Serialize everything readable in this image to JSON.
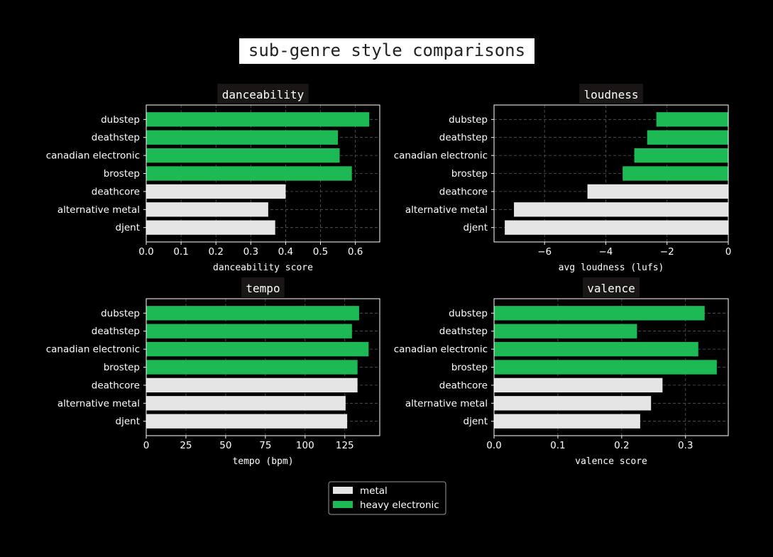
{
  "figure_title": "sub-genre style comparisons",
  "colors": {
    "background": "#000000",
    "metal": "#e5e5e5",
    "heavy_electronic": "#1db954",
    "axes_edge": "#ffffff",
    "grid": "#5a5a5a",
    "panel_title_bg": "#1a1616",
    "figure_title_bg": "#ffffff",
    "figure_title_text": "#222222"
  },
  "legend": {
    "position": "bottom-center",
    "items": [
      {
        "label": "metal",
        "color_key": "metal"
      },
      {
        "label": "heavy electronic",
        "color_key": "heavy_electronic"
      }
    ]
  },
  "chart_data": [
    {
      "type": "bar",
      "orientation": "horizontal",
      "title": "danceability",
      "xlabel": "danceability score",
      "categories": [
        "djent",
        "alternative metal",
        "deathcore",
        "brostep",
        "canadian electronic",
        "deathstep",
        "dubstep"
      ],
      "groups": [
        "metal",
        "metal",
        "metal",
        "heavy electronic",
        "heavy electronic",
        "heavy electronic",
        "heavy electronic"
      ],
      "values": [
        0.37,
        0.35,
        0.4,
        0.59,
        0.555,
        0.55,
        0.64
      ],
      "xlim": [
        0,
        0.67
      ],
      "xticks": [
        0.0,
        0.1,
        0.2,
        0.3,
        0.4,
        0.5,
        0.6
      ],
      "xtick_labels": [
        "0.0",
        "0.1",
        "0.2",
        "0.3",
        "0.4",
        "0.5",
        "0.6"
      ],
      "grid": true
    },
    {
      "type": "bar",
      "orientation": "horizontal",
      "title": "loudness",
      "xlabel": "avg loudness (lufs)",
      "categories": [
        "djent",
        "alternative metal",
        "deathcore",
        "brostep",
        "canadian electronic",
        "deathstep",
        "dubstep"
      ],
      "groups": [
        "metal",
        "metal",
        "metal",
        "heavy electronic",
        "heavy electronic",
        "heavy electronic",
        "heavy electronic"
      ],
      "values": [
        -7.3,
        -7.0,
        -4.6,
        -3.45,
        -3.07,
        -2.65,
        -2.35
      ],
      "xlim": [
        -7.65,
        0
      ],
      "xticks": [
        -6,
        -4,
        -2,
        0
      ],
      "xtick_labels": [
        "−6",
        "−4",
        "−2",
        "0"
      ],
      "grid": true
    },
    {
      "type": "bar",
      "orientation": "horizontal",
      "title": "tempo",
      "xlabel": "tempo (bpm)",
      "categories": [
        "djent",
        "alternative metal",
        "deathcore",
        "brostep",
        "canadian electronic",
        "deathstep",
        "dubstep"
      ],
      "groups": [
        "metal",
        "metal",
        "metal",
        "heavy electronic",
        "heavy electronic",
        "heavy electronic",
        "heavy electronic"
      ],
      "values": [
        126.5,
        125.5,
        133,
        133,
        140,
        129.5,
        134
      ],
      "xlim": [
        0,
        147
      ],
      "xticks": [
        0,
        25,
        50,
        75,
        100,
        125
      ],
      "xtick_labels": [
        "0",
        "25",
        "50",
        "75",
        "100",
        "125"
      ],
      "grid": true
    },
    {
      "type": "bar",
      "orientation": "horizontal",
      "title": "valence",
      "xlabel": "valence score",
      "categories": [
        "djent",
        "alternative metal",
        "deathcore",
        "brostep",
        "canadian electronic",
        "deathstep",
        "dubstep"
      ],
      "groups": [
        "metal",
        "metal",
        "metal",
        "heavy electronic",
        "heavy electronic",
        "heavy electronic",
        "heavy electronic"
      ],
      "values": [
        0.229,
        0.246,
        0.264,
        0.349,
        0.32,
        0.224,
        0.33
      ],
      "xlim": [
        0,
        0.367
      ],
      "xticks": [
        0.0,
        0.1,
        0.2,
        0.3
      ],
      "xtick_labels": [
        "0.0",
        "0.1",
        "0.2",
        "0.3"
      ],
      "grid": true
    }
  ]
}
